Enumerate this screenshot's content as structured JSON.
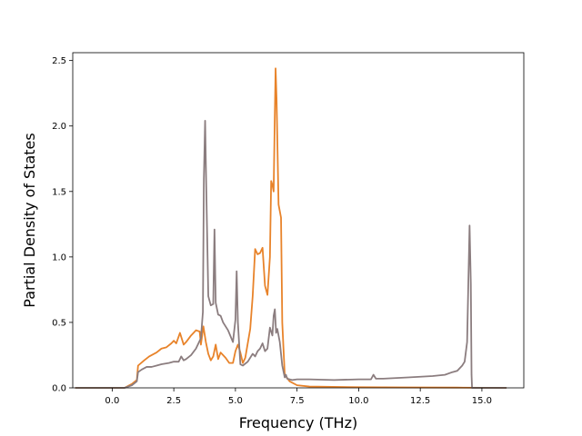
{
  "chart_data": {
    "type": "line",
    "title": "",
    "xlabel": "Frequency (THz)",
    "ylabel": "Partial Density of States",
    "xlim": [
      -1.6,
      16.7
    ],
    "ylim": [
      0,
      2.56
    ],
    "x_ticks": [
      0.0,
      2.5,
      5.0,
      7.5,
      10.0,
      12.5,
      15.0
    ],
    "x_tick_labels": [
      "0.0",
      "2.5",
      "5.0",
      "7.5",
      "10.0",
      "12.5",
      "15.0"
    ],
    "y_ticks": [
      0.0,
      0.5,
      1.0,
      1.5,
      2.0,
      2.5
    ],
    "y_tick_labels": [
      "0.0",
      "0.5",
      "1.0",
      "1.5",
      "2.0",
      "2.5"
    ],
    "grid": false,
    "legend": "none",
    "series": [
      {
        "color": "#e8832a",
        "points": [
          [
            -1.5,
            0
          ],
          [
            0.5,
            0
          ],
          [
            0.8,
            0.03
          ],
          [
            1.0,
            0.06
          ],
          [
            1.05,
            0.17
          ],
          [
            1.3,
            0.21
          ],
          [
            1.5,
            0.24
          ],
          [
            1.8,
            0.27
          ],
          [
            2.0,
            0.3
          ],
          [
            2.2,
            0.31
          ],
          [
            2.4,
            0.34
          ],
          [
            2.5,
            0.36
          ],
          [
            2.6,
            0.34
          ],
          [
            2.75,
            0.42
          ],
          [
            2.9,
            0.33
          ],
          [
            3.0,
            0.35
          ],
          [
            3.2,
            0.4
          ],
          [
            3.4,
            0.44
          ],
          [
            3.55,
            0.43
          ],
          [
            3.6,
            0.33
          ],
          [
            3.7,
            0.47
          ],
          [
            3.8,
            0.35
          ],
          [
            3.9,
            0.26
          ],
          [
            4.0,
            0.21
          ],
          [
            4.1,
            0.24
          ],
          [
            4.2,
            0.33
          ],
          [
            4.3,
            0.22
          ],
          [
            4.4,
            0.27
          ],
          [
            4.6,
            0.23
          ],
          [
            4.75,
            0.19
          ],
          [
            4.9,
            0.19
          ],
          [
            5.0,
            0.28
          ],
          [
            5.1,
            0.33
          ],
          [
            5.2,
            0.27
          ],
          [
            5.3,
            0.19
          ],
          [
            5.4,
            0.23
          ],
          [
            5.6,
            0.45
          ],
          [
            5.7,
            0.7
          ],
          [
            5.8,
            1.06
          ],
          [
            5.9,
            1.02
          ],
          [
            6.0,
            1.03
          ],
          [
            6.1,
            1.07
          ],
          [
            6.2,
            0.78
          ],
          [
            6.3,
            0.71
          ],
          [
            6.4,
            1.0
          ],
          [
            6.45,
            1.58
          ],
          [
            6.5,
            1.55
          ],
          [
            6.55,
            1.5
          ],
          [
            6.6,
            2.1
          ],
          [
            6.63,
            2.44
          ],
          [
            6.67,
            2.2
          ],
          [
            6.75,
            1.4
          ],
          [
            6.85,
            1.3
          ],
          [
            6.9,
            0.5
          ],
          [
            7.0,
            0.1
          ],
          [
            7.2,
            0.05
          ],
          [
            7.5,
            0.02
          ],
          [
            8.0,
            0.01
          ],
          [
            10.0,
            0.005
          ],
          [
            12.0,
            0.003
          ],
          [
            14.0,
            0.002
          ],
          [
            15.0,
            0.001
          ],
          [
            16.0,
            0
          ]
        ]
      },
      {
        "color": "#8b7d7f",
        "points": [
          [
            -1.5,
            0
          ],
          [
            0.5,
            0
          ],
          [
            0.8,
            0.02
          ],
          [
            1.0,
            0.05
          ],
          [
            1.05,
            0.12
          ],
          [
            1.2,
            0.14
          ],
          [
            1.4,
            0.16
          ],
          [
            1.6,
            0.16
          ],
          [
            1.8,
            0.17
          ],
          [
            2.0,
            0.18
          ],
          [
            2.3,
            0.19
          ],
          [
            2.5,
            0.2
          ],
          [
            2.7,
            0.2
          ],
          [
            2.8,
            0.24
          ],
          [
            2.9,
            0.21
          ],
          [
            3.0,
            0.22
          ],
          [
            3.2,
            0.25
          ],
          [
            3.4,
            0.3
          ],
          [
            3.6,
            0.38
          ],
          [
            3.68,
            0.58
          ],
          [
            3.72,
            1.6
          ],
          [
            3.77,
            2.04
          ],
          [
            3.82,
            1.5
          ],
          [
            3.9,
            0.7
          ],
          [
            4.0,
            0.63
          ],
          [
            4.1,
            0.64
          ],
          [
            4.15,
            1.21
          ],
          [
            4.2,
            0.65
          ],
          [
            4.3,
            0.56
          ],
          [
            4.4,
            0.55
          ],
          [
            4.5,
            0.5
          ],
          [
            4.7,
            0.44
          ],
          [
            4.9,
            0.35
          ],
          [
            5.0,
            0.52
          ],
          [
            5.05,
            0.89
          ],
          [
            5.1,
            0.5
          ],
          [
            5.2,
            0.18
          ],
          [
            5.3,
            0.17
          ],
          [
            5.5,
            0.2
          ],
          [
            5.7,
            0.26
          ],
          [
            5.8,
            0.24
          ],
          [
            5.9,
            0.28
          ],
          [
            6.0,
            0.3
          ],
          [
            6.1,
            0.34
          ],
          [
            6.2,
            0.28
          ],
          [
            6.3,
            0.3
          ],
          [
            6.4,
            0.46
          ],
          [
            6.5,
            0.4
          ],
          [
            6.55,
            0.55
          ],
          [
            6.6,
            0.6
          ],
          [
            6.65,
            0.42
          ],
          [
            6.7,
            0.45
          ],
          [
            6.8,
            0.35
          ],
          [
            6.9,
            0.17
          ],
          [
            7.0,
            0.08
          ],
          [
            7.05,
            0.1
          ],
          [
            7.1,
            0.07
          ],
          [
            7.3,
            0.06
          ],
          [
            7.5,
            0.065
          ],
          [
            8.0,
            0.065
          ],
          [
            9.0,
            0.06
          ],
          [
            10.0,
            0.065
          ],
          [
            10.5,
            0.065
          ],
          [
            10.6,
            0.1
          ],
          [
            10.7,
            0.07
          ],
          [
            11.0,
            0.07
          ],
          [
            12.0,
            0.08
          ],
          [
            12.5,
            0.085
          ],
          [
            13.0,
            0.09
          ],
          [
            13.5,
            0.1
          ],
          [
            13.8,
            0.12
          ],
          [
            14.0,
            0.13
          ],
          [
            14.2,
            0.17
          ],
          [
            14.3,
            0.2
          ],
          [
            14.4,
            0.35
          ],
          [
            14.45,
            0.8
          ],
          [
            14.5,
            1.24
          ],
          [
            14.55,
            0.8
          ],
          [
            14.58,
            0.1
          ],
          [
            14.6,
            0
          ],
          [
            16.0,
            0
          ]
        ]
      }
    ]
  }
}
